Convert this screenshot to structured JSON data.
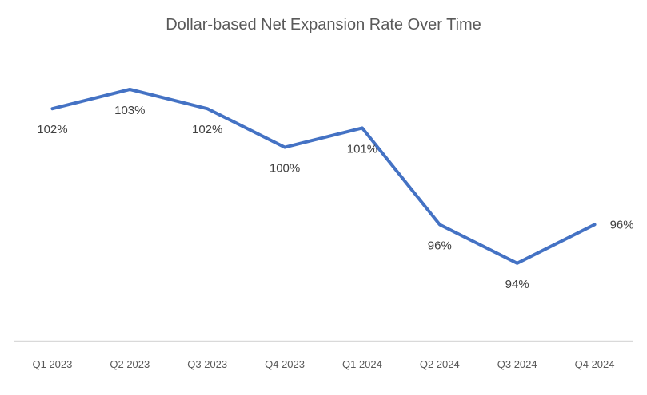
{
  "chart_data": {
    "type": "line",
    "title": "Dollar-based Net Expansion Rate Over Time",
    "categories": [
      "Q1 2023",
      "Q2 2023",
      "Q3 2023",
      "Q4 2023",
      "Q1 2024",
      "Q2 2024",
      "Q3 2024",
      "Q4 2024"
    ],
    "values": [
      102,
      103,
      102,
      100,
      101,
      96,
      94,
      96
    ],
    "data_labels": [
      "102%",
      "103%",
      "102%",
      "100%",
      "101%",
      "96%",
      "94%",
      "96%"
    ],
    "unit": "%",
    "xlabel": "",
    "ylabel": "",
    "ylim": [
      90,
      104
    ],
    "grid": false,
    "legend": "none",
    "y_axis_visible": false,
    "colors": {
      "line": "#4472C4",
      "title_text": "#595959",
      "data_label_text": "#404040",
      "axis_tick_text": "#595959",
      "axis_line": "#D9D9D9",
      "background": "#FFFFFF"
    }
  }
}
